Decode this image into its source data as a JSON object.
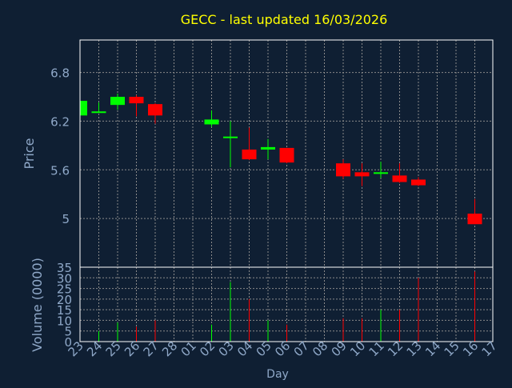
{
  "colors": {
    "background": "#0f1f33",
    "title": "#ffff00",
    "axis_text": "#8fa8c8",
    "frame": "#ffffff",
    "grid": "#8a8a8a",
    "up": "#00ff00",
    "down": "#ff0000"
  },
  "chart_data": {
    "type": "candlestick",
    "title": "GECC - last updated 16/03/2026",
    "xlabel": "Day",
    "price_axis": {
      "label": "Price",
      "ylim": [
        4.4,
        7.2
      ],
      "ticks": [
        5,
        5.6,
        6.2,
        6.8
      ],
      "tick_labels": [
        "5",
        "5.6",
        "6.2",
        "6.8"
      ]
    },
    "volume_axis": {
      "label": "Volume (0000)",
      "ylim": [
        0,
        35
      ],
      "ticks": [
        0,
        5,
        10,
        15,
        20,
        25,
        30,
        35
      ],
      "tick_labels": [
        "0",
        "5",
        "10",
        "15",
        "20",
        "25",
        "30",
        "35"
      ]
    },
    "x_tick_labels": [
      "23",
      "24",
      "25",
      "26",
      "27",
      "28",
      "01",
      "02",
      "03",
      "04",
      "05",
      "06",
      "07",
      "08",
      "09",
      "10",
      "11",
      "12",
      "13",
      "14",
      "15",
      "16",
      "17"
    ],
    "grid": true,
    "candles": [
      {
        "day": "23",
        "open": 6.27,
        "high": 6.45,
        "low": 6.25,
        "close": 6.45,
        "volume": 0
      },
      {
        "day": "24",
        "open": 6.32,
        "high": 6.43,
        "low": 6.31,
        "close": 6.32,
        "volume": 5
      },
      {
        "day": "25",
        "open": 6.4,
        "high": 6.54,
        "low": 6.34,
        "close": 6.5,
        "volume": 9
      },
      {
        "day": "26",
        "open": 6.5,
        "high": 6.52,
        "low": 6.26,
        "close": 6.42,
        "volume": 7
      },
      {
        "day": "27",
        "open": 6.41,
        "high": 6.42,
        "low": 6.17,
        "close": 6.27,
        "volume": 10
      },
      {
        "day": "02",
        "open": 6.16,
        "high": 6.33,
        "low": 6.13,
        "close": 6.22,
        "volume": 8
      },
      {
        "day": "03",
        "open": 6.01,
        "high": 6.2,
        "low": 5.63,
        "close": 6.01,
        "volume": 28
      },
      {
        "day": "04",
        "open": 5.85,
        "high": 6.12,
        "low": 5.72,
        "close": 5.73,
        "volume": 20
      },
      {
        "day": "05",
        "open": 5.85,
        "high": 5.98,
        "low": 5.73,
        "close": 5.88,
        "volume": 10
      },
      {
        "day": "06",
        "open": 5.87,
        "high": 5.87,
        "low": 5.68,
        "close": 5.69,
        "volume": 8
      },
      {
        "day": "09",
        "open": 5.68,
        "high": 5.73,
        "low": 5.49,
        "close": 5.52,
        "volume": 11
      },
      {
        "day": "10",
        "open": 5.57,
        "high": 5.68,
        "low": 5.4,
        "close": 5.52,
        "volume": 11
      },
      {
        "day": "11",
        "open": 5.55,
        "high": 5.7,
        "low": 5.5,
        "close": 5.57,
        "volume": 15
      },
      {
        "day": "12",
        "open": 5.53,
        "high": 5.68,
        "low": 5.44,
        "close": 5.45,
        "volume": 15
      },
      {
        "day": "13",
        "open": 5.48,
        "high": 5.51,
        "low": 5.4,
        "close": 5.41,
        "volume": 30
      },
      {
        "day": "16",
        "open": 5.06,
        "high": 5.24,
        "low": 4.93,
        "close": 4.93,
        "volume": 33
      }
    ]
  }
}
